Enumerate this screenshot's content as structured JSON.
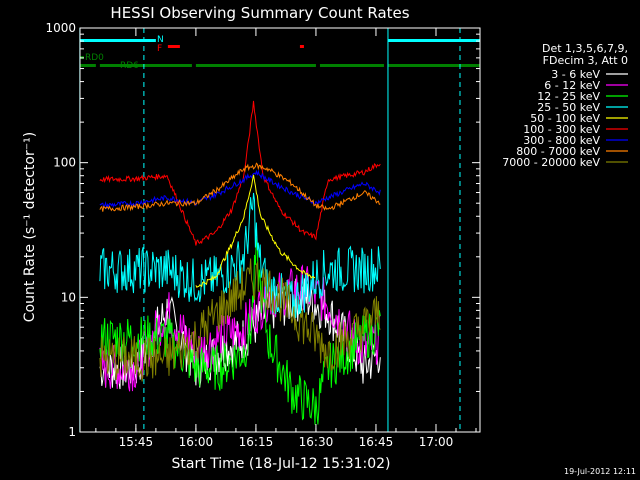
{
  "chart_data": {
    "type": "line",
    "title": "HESSI Observing Summary Count Rates",
    "xlabel": "Start Time (18-Jul-12 15:31:02)",
    "ylabel": "Count Rate (s⁻¹ detector⁻¹)",
    "yscale": "log",
    "ylim": [
      1,
      1000
    ],
    "xlim": [
      "15:31:02",
      "17:11:00"
    ],
    "x_ticks": [
      "15:45",
      "16:00",
      "16:15",
      "16:30",
      "16:45",
      "17:00"
    ],
    "y_ticks": [
      "1",
      "10",
      "100",
      "1000"
    ],
    "footer_date": "19-Jul-2012 12:11",
    "legend": {
      "header": [
        "Det 1,3,5,6,7,9,",
        "FDecim 3, Att 0"
      ],
      "position": "right"
    },
    "flags": [
      {
        "name": "N",
        "color": "#00ffff",
        "label": "N",
        "intervals": [
          [
            "15:31",
            "15:50"
          ],
          [
            "16:48",
            "17:11"
          ]
        ],
        "row": "top"
      },
      {
        "name": "F",
        "color": "#ff0000",
        "label": "F",
        "intervals": [
          [
            "15:53",
            "15:56"
          ],
          [
            "16:26",
            "16:27"
          ]
        ],
        "row": "mid"
      },
      {
        "name": "RD0",
        "color": "#008000",
        "label": "RD0",
        "intervals": [
          [
            "15:31",
            "15:32"
          ]
        ],
        "row": "rd0"
      },
      {
        "name": "RD6",
        "color": "#008000",
        "label": "RD6",
        "intervals": [
          [
            "15:31",
            "15:35"
          ],
          [
            "15:36",
            "15:59"
          ],
          [
            "16:00",
            "16:30"
          ],
          [
            "16:31",
            "16:47"
          ],
          [
            "16:48",
            "17:11"
          ]
        ],
        "row": "rd6"
      }
    ],
    "vertical_lines": {
      "color": "#00ffff",
      "solid": [
        "15:31",
        "16:48"
      ],
      "dashed": [
        "15:47",
        "17:06"
      ]
    },
    "series": [
      {
        "name": "3 - 6 keV",
        "color": "#ffffff",
        "profile": [
          [
            15.6,
            3
          ],
          [
            15.75,
            3
          ],
          [
            15.88,
            8
          ],
          [
            16.0,
            3
          ],
          [
            16.1,
            4
          ],
          [
            16.2,
            5
          ],
          [
            16.3,
            8
          ],
          [
            16.45,
            10
          ],
          [
            16.55,
            8
          ],
          [
            16.7,
            3
          ],
          [
            16.77,
            4
          ]
        ]
      },
      {
        "name": "6 - 12 keV",
        "color": "#ff00ff",
        "profile": [
          [
            15.6,
            3
          ],
          [
            15.75,
            3
          ],
          [
            15.88,
            8
          ],
          [
            16.0,
            4
          ],
          [
            16.1,
            5
          ],
          [
            16.2,
            6
          ],
          [
            16.3,
            10
          ],
          [
            16.45,
            12
          ],
          [
            16.55,
            9
          ],
          [
            16.7,
            4
          ],
          [
            16.77,
            5
          ]
        ]
      },
      {
        "name": "12 - 25 keV",
        "color": "#00ff00",
        "profile": [
          [
            15.6,
            5
          ],
          [
            15.75,
            5
          ],
          [
            15.88,
            5
          ],
          [
            16.0,
            3
          ],
          [
            16.1,
            3
          ],
          [
            16.2,
            4
          ],
          [
            16.23,
            6
          ],
          [
            16.25,
            20
          ],
          [
            16.3,
            5
          ],
          [
            16.4,
            2
          ],
          [
            16.5,
            1.5
          ],
          [
            16.55,
            3
          ],
          [
            16.7,
            5
          ],
          [
            16.77,
            6
          ]
        ]
      },
      {
        "name": "25 - 50 keV",
        "color": "#00ffff",
        "profile": [
          [
            15.6,
            16
          ],
          [
            15.75,
            16
          ],
          [
            15.88,
            16
          ],
          [
            16.0,
            13
          ],
          [
            16.1,
            14
          ],
          [
            16.2,
            20
          ],
          [
            16.24,
            50
          ],
          [
            16.26,
            20
          ],
          [
            16.3,
            12
          ],
          [
            16.4,
            9
          ],
          [
            16.5,
            14
          ],
          [
            16.55,
            16
          ],
          [
            16.7,
            16
          ],
          [
            16.77,
            17
          ]
        ]
      },
      {
        "name": "50 - 100 keV",
        "color": "#ffff00",
        "profile": [
          [
            16.0,
            12
          ],
          [
            16.08,
            14
          ],
          [
            16.15,
            25
          ],
          [
            16.2,
            40
          ],
          [
            16.24,
            80
          ],
          [
            16.27,
            40
          ],
          [
            16.35,
            22
          ],
          [
            16.45,
            15
          ],
          [
            16.5,
            14
          ]
        ]
      },
      {
        "name": "100 - 300 keV",
        "color": "#ff0000",
        "profile": [
          [
            15.6,
            75
          ],
          [
            15.75,
            76
          ],
          [
            15.88,
            80
          ],
          [
            16.0,
            25
          ],
          [
            16.08,
            30
          ],
          [
            16.15,
            45
          ],
          [
            16.2,
            80
          ],
          [
            16.24,
            280
          ],
          [
            16.28,
            80
          ],
          [
            16.35,
            45
          ],
          [
            16.45,
            30
          ],
          [
            16.5,
            28
          ],
          [
            16.55,
            75
          ],
          [
            16.7,
            85
          ],
          [
            16.77,
            100
          ]
        ]
      },
      {
        "name": "300 - 800 keV",
        "color": "#0000ff",
        "profile": [
          [
            15.6,
            48
          ],
          [
            15.75,
            50
          ],
          [
            15.88,
            55
          ],
          [
            16.0,
            50
          ],
          [
            16.1,
            60
          ],
          [
            16.2,
            75
          ],
          [
            16.25,
            85
          ],
          [
            16.3,
            75
          ],
          [
            16.4,
            60
          ],
          [
            16.5,
            50
          ],
          [
            16.55,
            55
          ],
          [
            16.7,
            70
          ],
          [
            16.77,
            60
          ]
        ]
      },
      {
        "name": "800 - 7000 keV",
        "color": "#ff8000",
        "profile": [
          [
            15.6,
            45
          ],
          [
            15.75,
            47
          ],
          [
            15.88,
            50
          ],
          [
            16.0,
            50
          ],
          [
            16.1,
            65
          ],
          [
            16.2,
            90
          ],
          [
            16.25,
            95
          ],
          [
            16.3,
            90
          ],
          [
            16.4,
            70
          ],
          [
            16.5,
            48
          ],
          [
            16.55,
            45
          ],
          [
            16.7,
            60
          ],
          [
            16.77,
            50
          ]
        ]
      },
      {
        "name": "7000 - 20000 keV",
        "color": "#808000",
        "profile": [
          [
            15.6,
            3.5
          ],
          [
            15.75,
            3.5
          ],
          [
            15.88,
            3.5
          ],
          [
            16.0,
            5
          ],
          [
            16.1,
            8
          ],
          [
            16.2,
            12
          ],
          [
            16.25,
            14
          ],
          [
            16.3,
            12
          ],
          [
            16.4,
            8
          ],
          [
            16.5,
            5
          ],
          [
            16.55,
            4
          ],
          [
            16.7,
            6
          ],
          [
            16.77,
            8
          ]
        ]
      }
    ]
  }
}
